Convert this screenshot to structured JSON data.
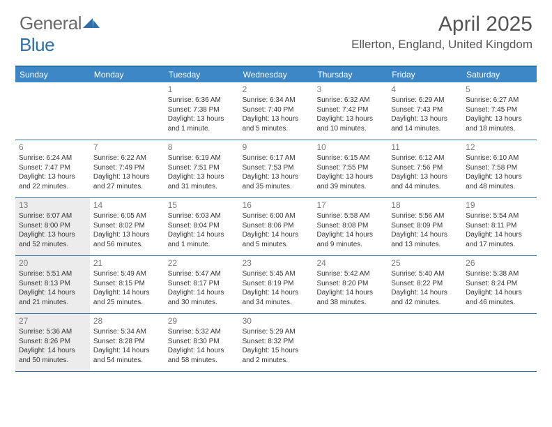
{
  "logo": {
    "general": "General",
    "blue": "Blue"
  },
  "title": {
    "month": "April 2025",
    "location": "Ellerton, England, United Kingdom"
  },
  "colors": {
    "header_bg": "#3d87c7",
    "border": "#2f6fa8",
    "shaded": "#ececec",
    "text": "#333333",
    "daynum": "#7a7a7a"
  },
  "day_headers": [
    "Sunday",
    "Monday",
    "Tuesday",
    "Wednesday",
    "Thursday",
    "Friday",
    "Saturday"
  ],
  "weeks": [
    [
      {
        "num": "",
        "sr": "",
        "ss": "",
        "dl": ""
      },
      {
        "num": "",
        "sr": "",
        "ss": "",
        "dl": ""
      },
      {
        "num": "1",
        "sr": "Sunrise: 6:36 AM",
        "ss": "Sunset: 7:38 PM",
        "dl": "Daylight: 13 hours and 1 minute."
      },
      {
        "num": "2",
        "sr": "Sunrise: 6:34 AM",
        "ss": "Sunset: 7:40 PM",
        "dl": "Daylight: 13 hours and 5 minutes."
      },
      {
        "num": "3",
        "sr": "Sunrise: 6:32 AM",
        "ss": "Sunset: 7:42 PM",
        "dl": "Daylight: 13 hours and 10 minutes."
      },
      {
        "num": "4",
        "sr": "Sunrise: 6:29 AM",
        "ss": "Sunset: 7:43 PM",
        "dl": "Daylight: 13 hours and 14 minutes."
      },
      {
        "num": "5",
        "sr": "Sunrise: 6:27 AM",
        "ss": "Sunset: 7:45 PM",
        "dl": "Daylight: 13 hours and 18 minutes."
      }
    ],
    [
      {
        "num": "6",
        "sr": "Sunrise: 6:24 AM",
        "ss": "Sunset: 7:47 PM",
        "dl": "Daylight: 13 hours and 22 minutes."
      },
      {
        "num": "7",
        "sr": "Sunrise: 6:22 AM",
        "ss": "Sunset: 7:49 PM",
        "dl": "Daylight: 13 hours and 27 minutes."
      },
      {
        "num": "8",
        "sr": "Sunrise: 6:19 AM",
        "ss": "Sunset: 7:51 PM",
        "dl": "Daylight: 13 hours and 31 minutes."
      },
      {
        "num": "9",
        "sr": "Sunrise: 6:17 AM",
        "ss": "Sunset: 7:53 PM",
        "dl": "Daylight: 13 hours and 35 minutes."
      },
      {
        "num": "10",
        "sr": "Sunrise: 6:15 AM",
        "ss": "Sunset: 7:55 PM",
        "dl": "Daylight: 13 hours and 39 minutes."
      },
      {
        "num": "11",
        "sr": "Sunrise: 6:12 AM",
        "ss": "Sunset: 7:56 PM",
        "dl": "Daylight: 13 hours and 44 minutes."
      },
      {
        "num": "12",
        "sr": "Sunrise: 6:10 AM",
        "ss": "Sunset: 7:58 PM",
        "dl": "Daylight: 13 hours and 48 minutes."
      }
    ],
    [
      {
        "num": "13",
        "sr": "Sunrise: 6:07 AM",
        "ss": "Sunset: 8:00 PM",
        "dl": "Daylight: 13 hours and 52 minutes.",
        "shaded": true
      },
      {
        "num": "14",
        "sr": "Sunrise: 6:05 AM",
        "ss": "Sunset: 8:02 PM",
        "dl": "Daylight: 13 hours and 56 minutes."
      },
      {
        "num": "15",
        "sr": "Sunrise: 6:03 AM",
        "ss": "Sunset: 8:04 PM",
        "dl": "Daylight: 14 hours and 1 minute."
      },
      {
        "num": "16",
        "sr": "Sunrise: 6:00 AM",
        "ss": "Sunset: 8:06 PM",
        "dl": "Daylight: 14 hours and 5 minutes."
      },
      {
        "num": "17",
        "sr": "Sunrise: 5:58 AM",
        "ss": "Sunset: 8:08 PM",
        "dl": "Daylight: 14 hours and 9 minutes."
      },
      {
        "num": "18",
        "sr": "Sunrise: 5:56 AM",
        "ss": "Sunset: 8:09 PM",
        "dl": "Daylight: 14 hours and 13 minutes."
      },
      {
        "num": "19",
        "sr": "Sunrise: 5:54 AM",
        "ss": "Sunset: 8:11 PM",
        "dl": "Daylight: 14 hours and 17 minutes."
      }
    ],
    [
      {
        "num": "20",
        "sr": "Sunrise: 5:51 AM",
        "ss": "Sunset: 8:13 PM",
        "dl": "Daylight: 14 hours and 21 minutes.",
        "shaded": true
      },
      {
        "num": "21",
        "sr": "Sunrise: 5:49 AM",
        "ss": "Sunset: 8:15 PM",
        "dl": "Daylight: 14 hours and 25 minutes."
      },
      {
        "num": "22",
        "sr": "Sunrise: 5:47 AM",
        "ss": "Sunset: 8:17 PM",
        "dl": "Daylight: 14 hours and 30 minutes."
      },
      {
        "num": "23",
        "sr": "Sunrise: 5:45 AM",
        "ss": "Sunset: 8:19 PM",
        "dl": "Daylight: 14 hours and 34 minutes."
      },
      {
        "num": "24",
        "sr": "Sunrise: 5:42 AM",
        "ss": "Sunset: 8:20 PM",
        "dl": "Daylight: 14 hours and 38 minutes."
      },
      {
        "num": "25",
        "sr": "Sunrise: 5:40 AM",
        "ss": "Sunset: 8:22 PM",
        "dl": "Daylight: 14 hours and 42 minutes."
      },
      {
        "num": "26",
        "sr": "Sunrise: 5:38 AM",
        "ss": "Sunset: 8:24 PM",
        "dl": "Daylight: 14 hours and 46 minutes."
      }
    ],
    [
      {
        "num": "27",
        "sr": "Sunrise: 5:36 AM",
        "ss": "Sunset: 8:26 PM",
        "dl": "Daylight: 14 hours and 50 minutes.",
        "shaded": true
      },
      {
        "num": "28",
        "sr": "Sunrise: 5:34 AM",
        "ss": "Sunset: 8:28 PM",
        "dl": "Daylight: 14 hours and 54 minutes."
      },
      {
        "num": "29",
        "sr": "Sunrise: 5:32 AM",
        "ss": "Sunset: 8:30 PM",
        "dl": "Daylight: 14 hours and 58 minutes."
      },
      {
        "num": "30",
        "sr": "Sunrise: 5:29 AM",
        "ss": "Sunset: 8:32 PM",
        "dl": "Daylight: 15 hours and 2 minutes."
      },
      {
        "num": "",
        "sr": "",
        "ss": "",
        "dl": ""
      },
      {
        "num": "",
        "sr": "",
        "ss": "",
        "dl": ""
      },
      {
        "num": "",
        "sr": "",
        "ss": "",
        "dl": ""
      }
    ]
  ]
}
